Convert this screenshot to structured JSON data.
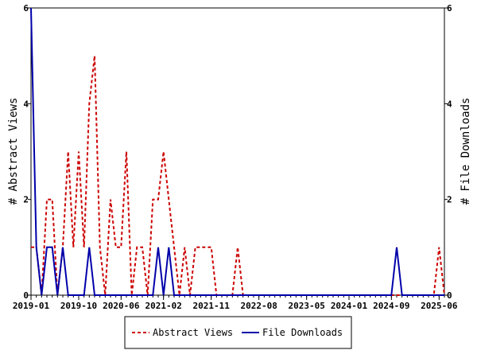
{
  "chart_data": {
    "type": "line",
    "title": "",
    "ylabel_left": "# Abstract Views",
    "ylabel_right": "# File Downloads",
    "ylim_left": [
      0,
      6
    ],
    "ylim_right": [
      0,
      6
    ],
    "yticks_left": [
      "0",
      "2",
      "4",
      "6"
    ],
    "yticks_right": [
      "0",
      "2",
      "4",
      "6"
    ],
    "x_start": "2019-01",
    "x_end": "2025-07",
    "xticks": [
      "2019-01",
      "2019-10",
      "2020-06",
      "2021-02",
      "2021-11",
      "2022-08",
      "2023-05",
      "2024-01",
      "2024-09",
      "2025-06"
    ],
    "grid": false,
    "legend_position": "bottom",
    "colors": {
      "abstract_views": "#cc0000",
      "file_downloads": "#0000aa"
    },
    "series": [
      {
        "name": "Abstract Views",
        "axis": "left",
        "style": "dashed",
        "x": [
          "2019-01",
          "2019-02",
          "2019-03",
          "2019-04",
          "2019-05",
          "2019-06",
          "2019-07",
          "2019-08",
          "2019-09",
          "2019-10",
          "2019-11",
          "2019-12",
          "2020-01",
          "2020-02",
          "2020-03",
          "2020-04",
          "2020-05",
          "2020-06",
          "2020-07",
          "2020-08",
          "2020-09",
          "2020-10",
          "2020-11",
          "2020-12",
          "2021-01",
          "2021-02",
          "2021-03",
          "2021-04",
          "2021-05",
          "2021-06",
          "2021-07",
          "2021-08",
          "2021-09",
          "2021-10",
          "2021-11",
          "2021-12",
          "2022-01",
          "2022-02",
          "2022-03",
          "2022-04",
          "2022-05",
          "2022-06",
          "2025-04",
          "2025-05",
          "2025-06",
          "2025-07"
        ],
        "values": [
          1,
          1,
          0,
          2,
          2,
          0,
          1,
          3,
          1,
          3,
          1,
          4,
          5,
          1,
          0,
          2,
          1,
          1,
          3,
          0,
          1,
          1,
          0,
          2,
          2,
          3,
          2,
          1,
          0,
          1,
          0,
          1,
          1,
          1,
          1,
          0,
          0,
          0,
          0,
          1,
          0,
          0,
          0,
          0,
          1,
          0
        ]
      },
      {
        "name": "File Downloads",
        "axis": "right",
        "style": "solid",
        "x": [
          "2019-01",
          "2019-02",
          "2019-03",
          "2019-04",
          "2019-05",
          "2019-06",
          "2019-07",
          "2019-08",
          "2019-09",
          "2019-10",
          "2019-11",
          "2019-12",
          "2020-01",
          "2020-02",
          "2020-03",
          "2020-04",
          "2020-05",
          "2020-06",
          "2020-07",
          "2020-08",
          "2020-09",
          "2020-10",
          "2020-11",
          "2020-12",
          "2021-01",
          "2021-02",
          "2021-03",
          "2021-04",
          "2021-05",
          "2021-06",
          "2024-09",
          "2024-10",
          "2024-11",
          "2025-07"
        ],
        "values": [
          6,
          1,
          0,
          1,
          1,
          0,
          1,
          0,
          0,
          0,
          0,
          1,
          0,
          0,
          0,
          0,
          0,
          0,
          0,
          0,
          0,
          0,
          0,
          0,
          1,
          0,
          1,
          0,
          0,
          0,
          0,
          1,
          0,
          0
        ]
      }
    ]
  }
}
